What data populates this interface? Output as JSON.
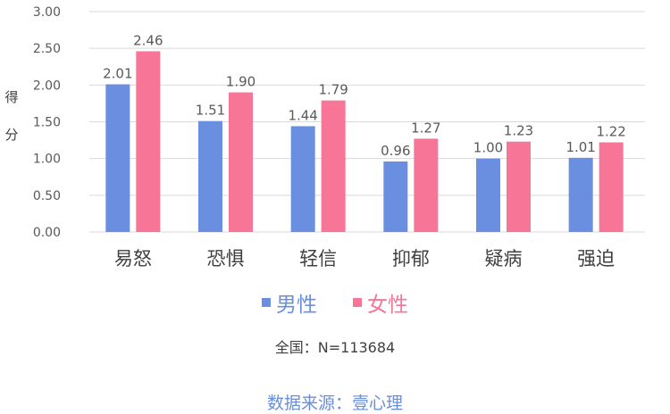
{
  "chart_data": {
    "type": "bar",
    "categories": [
      "易怒",
      "恐惧",
      "轻信",
      "抑郁",
      "疑病",
      "强迫"
    ],
    "series": [
      {
        "name": "男性",
        "values": [
          2.01,
          1.51,
          1.44,
          0.96,
          1.0,
          1.01
        ],
        "color": "#6a8fe0",
        "labels": [
          "2.01",
          "1.51",
          "1.44",
          "0.96",
          "1.00",
          "1.01"
        ]
      },
      {
        "name": "女性",
        "values": [
          2.46,
          1.9,
          1.79,
          1.27,
          1.23,
          1.22
        ],
        "color": "#f77597",
        "labels": [
          "2.46",
          "1.90",
          "1.79",
          "1.27",
          "1.23",
          "1.22"
        ]
      }
    ],
    "ylabel": "得分",
    "ylim": [
      0,
      3
    ],
    "yticks": [
      "0.00",
      "0.50",
      "1.00",
      "1.50",
      "2.00",
      "2.50",
      "3.00"
    ],
    "grid": true,
    "legend_position": "bottom"
  },
  "note": "全国：N=113684",
  "source": "数据来源：壹心理"
}
